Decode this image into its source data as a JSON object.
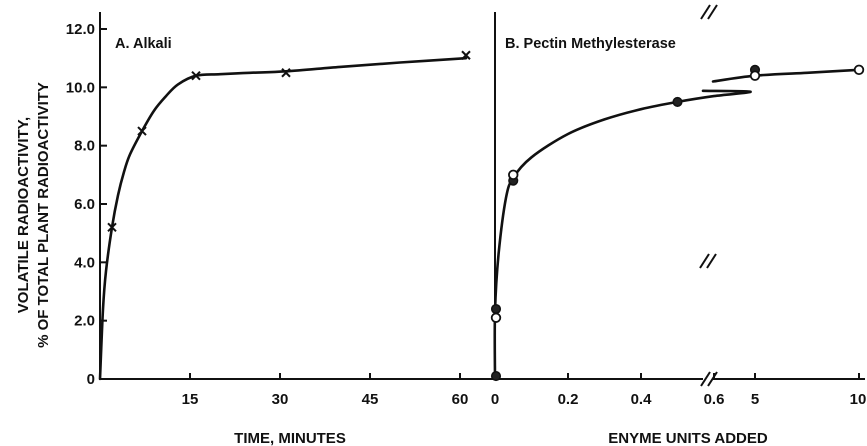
{
  "chart_data": [
    {
      "type": "scatter",
      "panel_label": "A. Alkali",
      "xlabel": "TIME, MINUTES",
      "ylabel_line1": "VOLATILE RADIOACTIVITY,",
      "ylabel_line2": "% OF TOTAL PLANT RADIOACTIVITY",
      "ylim": [
        0,
        12
      ],
      "xlim": [
        0,
        62
      ],
      "y_ticks": [
        "0",
        "2.0",
        "4.0",
        "6.0",
        "8.0",
        "10.0",
        "12.0"
      ],
      "x_ticks": [
        "15",
        "30",
        "45",
        "60"
      ],
      "series": [
        {
          "marker": "x",
          "points": [
            {
              "x": 2,
              "y": 5.2
            },
            {
              "x": 7,
              "y": 8.5
            },
            {
              "x": 16,
              "y": 10.4
            },
            {
              "x": 31,
              "y": 10.5
            },
            {
              "x": 61,
              "y": 11.1
            }
          ]
        }
      ],
      "fit_curve": [
        [
          0,
          0
        ],
        [
          0.5,
          2.4
        ],
        [
          1,
          3.7
        ],
        [
          2,
          5.2
        ],
        [
          3,
          6.3
        ],
        [
          4,
          7.1
        ],
        [
          5,
          7.7
        ],
        [
          7,
          8.5
        ],
        [
          9,
          9.2
        ],
        [
          11,
          9.7
        ],
        [
          13,
          10.1
        ],
        [
          16,
          10.4
        ],
        [
          20,
          10.45
        ],
        [
          25,
          10.5
        ],
        [
          31,
          10.55
        ],
        [
          40,
          10.7
        ],
        [
          50,
          10.85
        ],
        [
          61,
          11.0
        ]
      ]
    },
    {
      "type": "scatter",
      "panel_label": "B. Pectin Methylesterase",
      "xlabel": "ENYME UNITS ADDED",
      "ylim": [
        0,
        12
      ],
      "x_ticks": [
        "0",
        "0.2",
        "0.4",
        "0.6",
        "5",
        "10"
      ],
      "x_axis_break": "between 0.6 and 5",
      "series": [
        {
          "marker": "filled-circle",
          "points": [
            {
              "x": 0,
              "y": 0.1
            },
            {
              "x": 0,
              "y": 2.4
            },
            {
              "x": 0.05,
              "y": 6.8
            },
            {
              "x": 0.5,
              "y": 9.5
            },
            {
              "x": 5,
              "y": 10.6
            }
          ]
        },
        {
          "marker": "open-circle",
          "points": [
            {
              "x": 0,
              "y": 2.1
            },
            {
              "x": 0.05,
              "y": 7.0
            },
            {
              "x": 5,
              "y": 10.4
            },
            {
              "x": 10,
              "y": 10.6
            }
          ]
        }
      ],
      "fit_curve": [
        [
          0,
          0
        ],
        [
          0,
          2.3
        ],
        [
          0.01,
          4.3
        ],
        [
          0.03,
          6.2
        ],
        [
          0.05,
          6.9
        ],
        [
          0.1,
          7.6
        ],
        [
          0.2,
          8.4
        ],
        [
          0.3,
          8.9
        ],
        [
          0.4,
          9.25
        ],
        [
          0.5,
          9.5
        ],
        [
          0.6,
          9.7
        ],
        [
          0.7,
          9.85
        ],
        [
          5,
          10.4
        ],
        [
          7.5,
          10.5
        ],
        [
          10,
          10.6
        ]
      ]
    }
  ]
}
